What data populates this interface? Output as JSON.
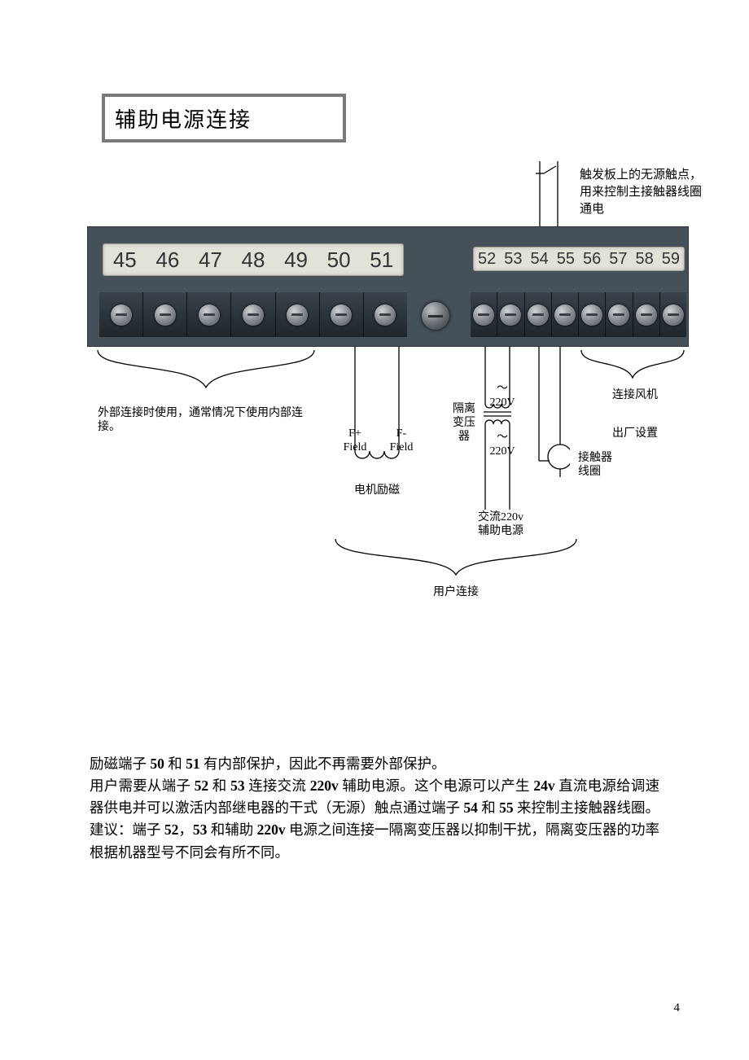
{
  "title": "辅助电源连接",
  "top_annotation": "触发板上的无源触点，用来控制主接触器线圈通电",
  "terminals_left": [
    "45",
    "46",
    "47",
    "48",
    "49",
    "50",
    "51"
  ],
  "terminals_right": [
    "52",
    "53",
    "54",
    "55",
    "56",
    "57",
    "58",
    "59"
  ],
  "labels": {
    "ext_conn": "外部连接时使用，通常情况下使用内部连接。",
    "f_plus": "F+\nField",
    "f_minus": "F-\nField",
    "motor_field": "电机励磁",
    "iso_trafo": "隔离\n变压器",
    "v_top": "～\n220V",
    "v_bot": "～\n220V",
    "aux_220": "交流220v\n辅助电源",
    "fan": "连接风机",
    "factory": "出厂设置",
    "contactor_coil": "接触器\n线圈",
    "user_conn": "用户连接"
  },
  "paragraphs": [
    "励磁端子 <b>50</b> 和 <b>51</b> 有内部保护，因此不再需要外部保护。",
    "用户需要从端子 <b>52</b> 和 <b>53</b> 连接交流 <b>220v</b> 辅助电源。这个电源可以产生 <b>24v</b> 直流电源给调速器供电并可以激活内部继电器的干式（无源）触点通过端子 <b>54</b> 和 <b>55</b> 来控制主接触器线圈。",
    "建议：端子 <b>52</b>，<b>53</b> 和辅助 <b>220v</b> 电源之间连接一隔离变压器以抑制干扰，隔离变压器的功率根据机器型号不同会有所不同。"
  ],
  "page_number": "4",
  "colors": {
    "border_gray": "#7a7a7a",
    "device_bg": "#455058",
    "label_bg": "#e2e2d9"
  }
}
